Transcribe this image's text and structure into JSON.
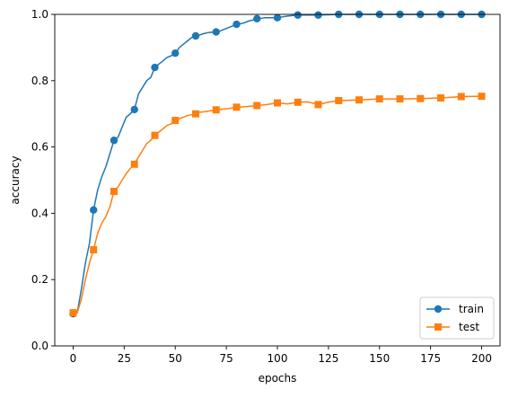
{
  "chart_data": {
    "type": "line",
    "xlabel": "epochs",
    "ylabel": "accuracy",
    "xlim": [
      -9,
      209
    ],
    "ylim": [
      0.0,
      1.0
    ],
    "xticks": [
      0,
      25,
      50,
      75,
      100,
      125,
      150,
      175,
      200
    ],
    "xtick_labels": [
      "0",
      "25",
      "50",
      "75",
      "100",
      "125",
      "150",
      "175",
      "200"
    ],
    "yticks": [
      0.0,
      0.2,
      0.4,
      0.6,
      0.8,
      1.0
    ],
    "ytick_labels": [
      "0.0",
      "0.2",
      "0.4",
      "0.6",
      "0.8",
      "1.0"
    ],
    "grid": false,
    "legend_position": "lower right",
    "series": [
      {
        "name": "train",
        "color": "#1f77b4",
        "marker": "circle",
        "marker_x": [
          0,
          10,
          20,
          30,
          40,
          50,
          60,
          70,
          80,
          90,
          100,
          110,
          120,
          130,
          140,
          150,
          160,
          170,
          180,
          190,
          200
        ],
        "marker_y": [
          0.097,
          0.41,
          0.62,
          0.713,
          0.84,
          0.883,
          0.935,
          0.947,
          0.97,
          0.987,
          0.99,
          0.998,
          0.998,
          1.0,
          1.0,
          1.0,
          1.0,
          1.0,
          1.0,
          1.0,
          1.0
        ],
        "curve_x": [
          0,
          2,
          4,
          6,
          8,
          10,
          12,
          14,
          16,
          18,
          20,
          22,
          24,
          26,
          28,
          30,
          32,
          34,
          36,
          38,
          40,
          42,
          44,
          46,
          48,
          50,
          52,
          54,
          56,
          58,
          60,
          62,
          64,
          66,
          68,
          70,
          72,
          74,
          76,
          78,
          80,
          82,
          84,
          86,
          88,
          90,
          92,
          94,
          96,
          98,
          100,
          105,
          110,
          115,
          120,
          125,
          130,
          140,
          150,
          160,
          170,
          180,
          190,
          200
        ],
        "curve_y": [
          0.097,
          0.1,
          0.17,
          0.25,
          0.31,
          0.41,
          0.47,
          0.51,
          0.54,
          0.58,
          0.62,
          0.63,
          0.66,
          0.69,
          0.7,
          0.713,
          0.76,
          0.78,
          0.8,
          0.81,
          0.84,
          0.85,
          0.86,
          0.87,
          0.875,
          0.883,
          0.9,
          0.91,
          0.92,
          0.93,
          0.935,
          0.938,
          0.942,
          0.945,
          0.946,
          0.947,
          0.95,
          0.955,
          0.96,
          0.965,
          0.97,
          0.972,
          0.975,
          0.98,
          0.983,
          0.987,
          0.988,
          0.99,
          0.99,
          0.99,
          0.99,
          0.995,
          0.998,
          0.998,
          0.998,
          0.999,
          1.0,
          1.0,
          1.0,
          1.0,
          1.0,
          1.0,
          1.0,
          1.0
        ]
      },
      {
        "name": "test",
        "color": "#ff7f0e",
        "marker": "square",
        "marker_x": [
          0,
          10,
          20,
          30,
          40,
          50,
          60,
          70,
          80,
          90,
          100,
          110,
          120,
          130,
          140,
          150,
          160,
          170,
          180,
          190,
          200
        ],
        "marker_y": [
          0.1,
          0.29,
          0.466,
          0.548,
          0.635,
          0.68,
          0.7,
          0.712,
          0.72,
          0.725,
          0.733,
          0.735,
          0.728,
          0.74,
          0.742,
          0.745,
          0.745,
          0.746,
          0.748,
          0.752,
          0.753
        ],
        "curve_x": [
          0,
          2,
          4,
          6,
          8,
          10,
          12,
          14,
          16,
          18,
          20,
          22,
          24,
          26,
          28,
          30,
          32,
          34,
          36,
          38,
          40,
          42,
          44,
          46,
          48,
          50,
          52,
          54,
          56,
          58,
          60,
          62,
          64,
          66,
          68,
          70,
          75,
          80,
          85,
          90,
          95,
          100,
          105,
          110,
          115,
          120,
          125,
          130,
          140,
          150,
          160,
          170,
          180,
          190,
          200
        ],
        "curve_y": [
          0.1,
          0.1,
          0.14,
          0.2,
          0.25,
          0.29,
          0.34,
          0.37,
          0.39,
          0.42,
          0.466,
          0.48,
          0.5,
          0.52,
          0.535,
          0.548,
          0.57,
          0.59,
          0.61,
          0.62,
          0.635,
          0.645,
          0.655,
          0.665,
          0.67,
          0.68,
          0.685,
          0.69,
          0.695,
          0.697,
          0.7,
          0.705,
          0.706,
          0.708,
          0.71,
          0.712,
          0.715,
          0.72,
          0.722,
          0.725,
          0.728,
          0.733,
          0.73,
          0.735,
          0.736,
          0.728,
          0.735,
          0.74,
          0.742,
          0.745,
          0.745,
          0.746,
          0.748,
          0.752,
          0.753
        ]
      }
    ]
  }
}
